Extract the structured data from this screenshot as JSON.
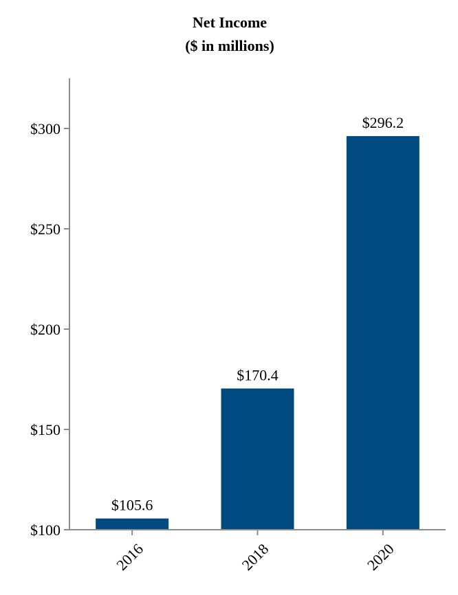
{
  "chart_data": {
    "type": "bar",
    "title": "Net Income",
    "subtitle": "($ in millions)",
    "categories": [
      "2016",
      "2018",
      "2020"
    ],
    "values": [
      105.6,
      170.4,
      296.2
    ],
    "data_labels": [
      "$105.6",
      "$170.4",
      "$296.2"
    ],
    "y_ticks": [
      100,
      150,
      200,
      250,
      300
    ],
    "y_tick_labels": [
      "$100",
      "$150",
      "$200",
      "$250",
      "$300"
    ],
    "ylim": [
      100,
      325
    ],
    "xlabel": "",
    "ylabel": "",
    "grid": false,
    "bar_color": "#004a7f"
  }
}
